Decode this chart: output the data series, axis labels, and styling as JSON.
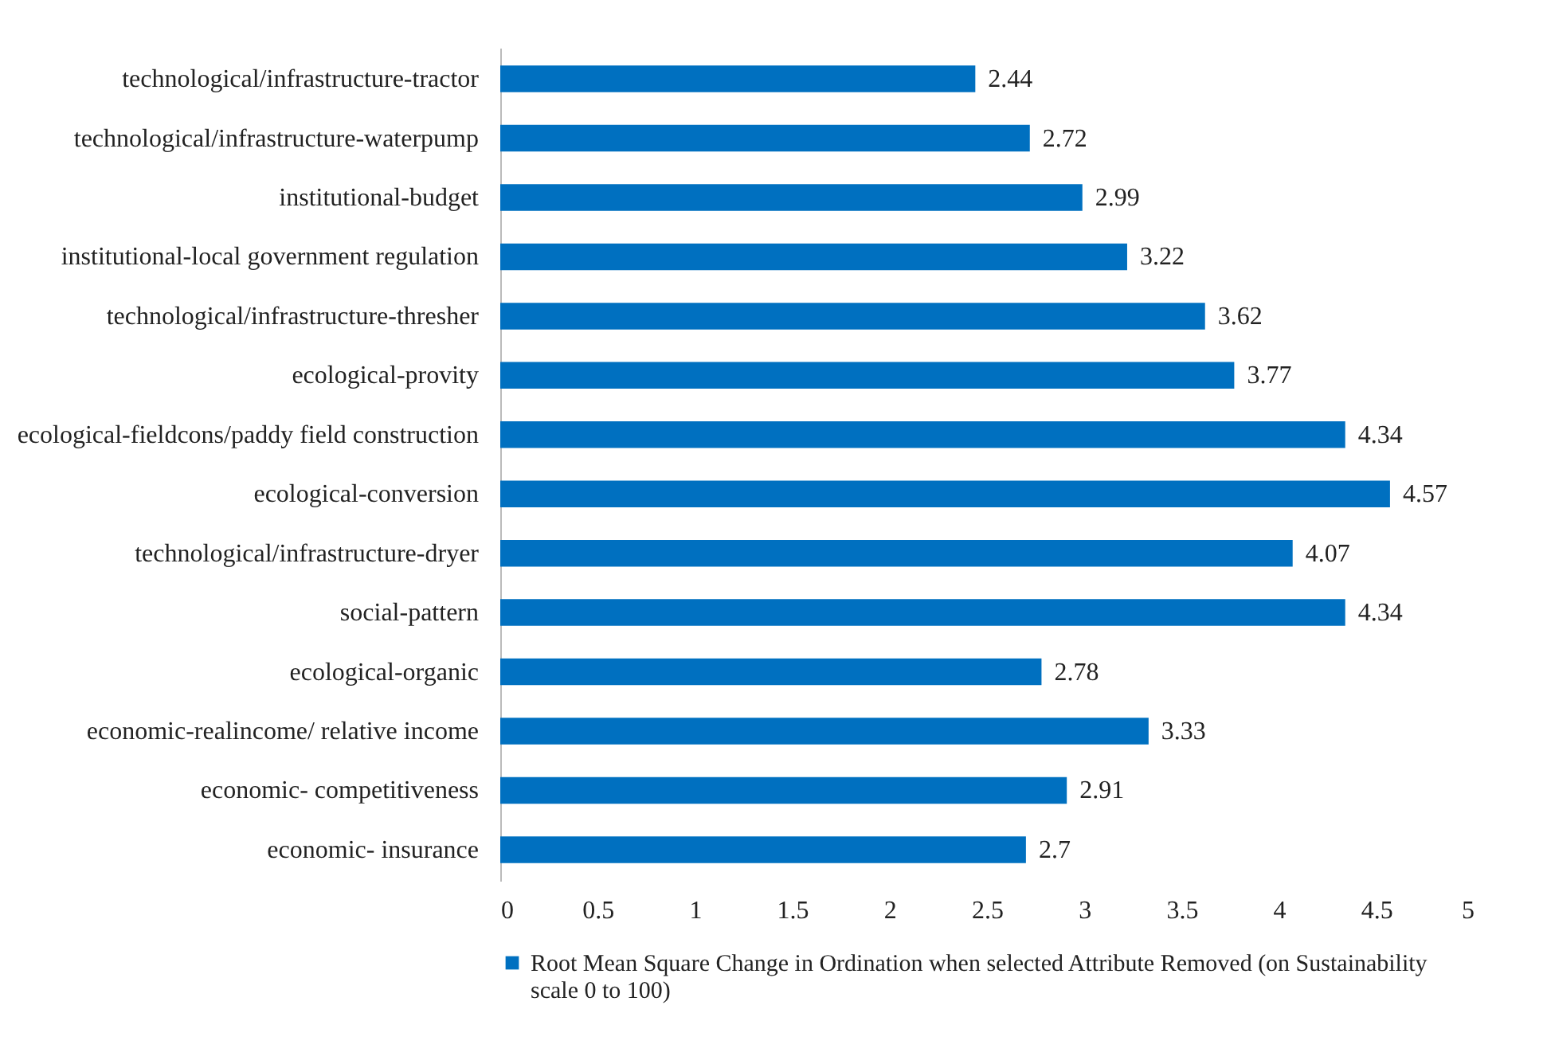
{
  "chart_data": {
    "type": "bar",
    "orientation": "horizontal",
    "categories": [
      "technological/infrastructure-tractor",
      "technological/infrastructure-waterpump",
      "institutional-budget",
      "institutional-local government regulation",
      "technological/infrastructure-thresher",
      "ecological-provity",
      "ecological-fieldcons/paddy field construction",
      "ecological-conversion",
      "technological/infrastructure-dryer",
      "social-pattern",
      "ecological-organic",
      "economic-realincome/ relative income",
      "economic- competitiveness",
      "economic- insurance"
    ],
    "series": [
      {
        "name": "Root Mean Square Change in Ordination when selected Attribute Removed (on Sustainability scale 0 to 100)",
        "color": "#0070c0",
        "values": [
          2.44,
          2.72,
          2.99,
          3.22,
          3.62,
          3.77,
          4.34,
          4.57,
          4.07,
          4.34,
          2.78,
          3.33,
          2.91,
          2.7
        ]
      }
    ],
    "xlim": [
      0,
      5
    ],
    "xticks": [
      0,
      0.5,
      1,
      1.5,
      2,
      2.5,
      3,
      3.5,
      4,
      4.5,
      5
    ],
    "data_labels": true,
    "legend": "bottom",
    "grid": false
  }
}
